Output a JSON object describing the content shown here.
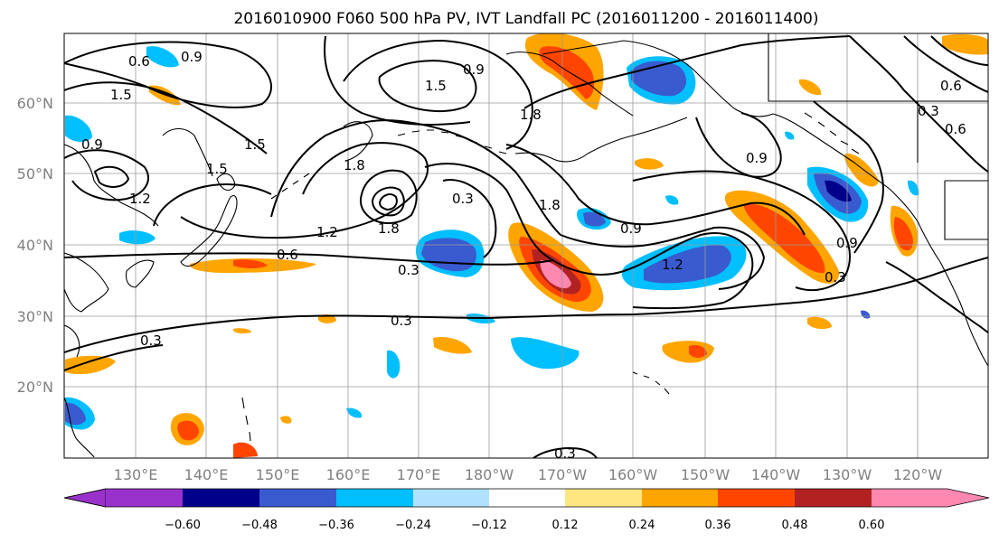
{
  "title": "2016010900 F060 500 hPa PV, IVT Landfall PC (2016011200 - 2016011400)",
  "map": {
    "lat_labels": [
      "60°N",
      "50°N",
      "40°N",
      "30°N",
      "20°N"
    ],
    "lon_labels": [
      "130°E",
      "140°E",
      "150°E",
      "160°E",
      "170°E",
      "180°W",
      "170°W",
      "160°W",
      "150°W",
      "140°W",
      "130°W",
      "120°W"
    ],
    "contour_labels": [
      "0.6",
      "0.9",
      "1.5",
      "1.2",
      "0.9",
      "1.5",
      "1.5",
      "1.8",
      "1.5",
      "1.8",
      "0.3",
      "1.8",
      "0.9",
      "0.6",
      "1.2",
      "0.3",
      "1.8",
      "1.2",
      "0.9",
      "0.3",
      "0.9",
      "0.3",
      "0.6",
      "0.9",
      "0.6",
      "0.3",
      "0.3",
      "0.3"
    ]
  },
  "colorbar": {
    "tick_labels": [
      "−0.60",
      "−0.48",
      "−0.36",
      "−0.24",
      "−0.12",
      "0.12",
      "0.24",
      "0.36",
      "0.48",
      "0.60"
    ],
    "colors": [
      "#9932cc",
      "#00008b",
      "#3a5bcf",
      "#00bfff",
      "#b0e2ff",
      "#ffffff",
      "#ffe680",
      "#ffa500",
      "#ff4500",
      "#b22222",
      "#ff88b0"
    ]
  }
}
